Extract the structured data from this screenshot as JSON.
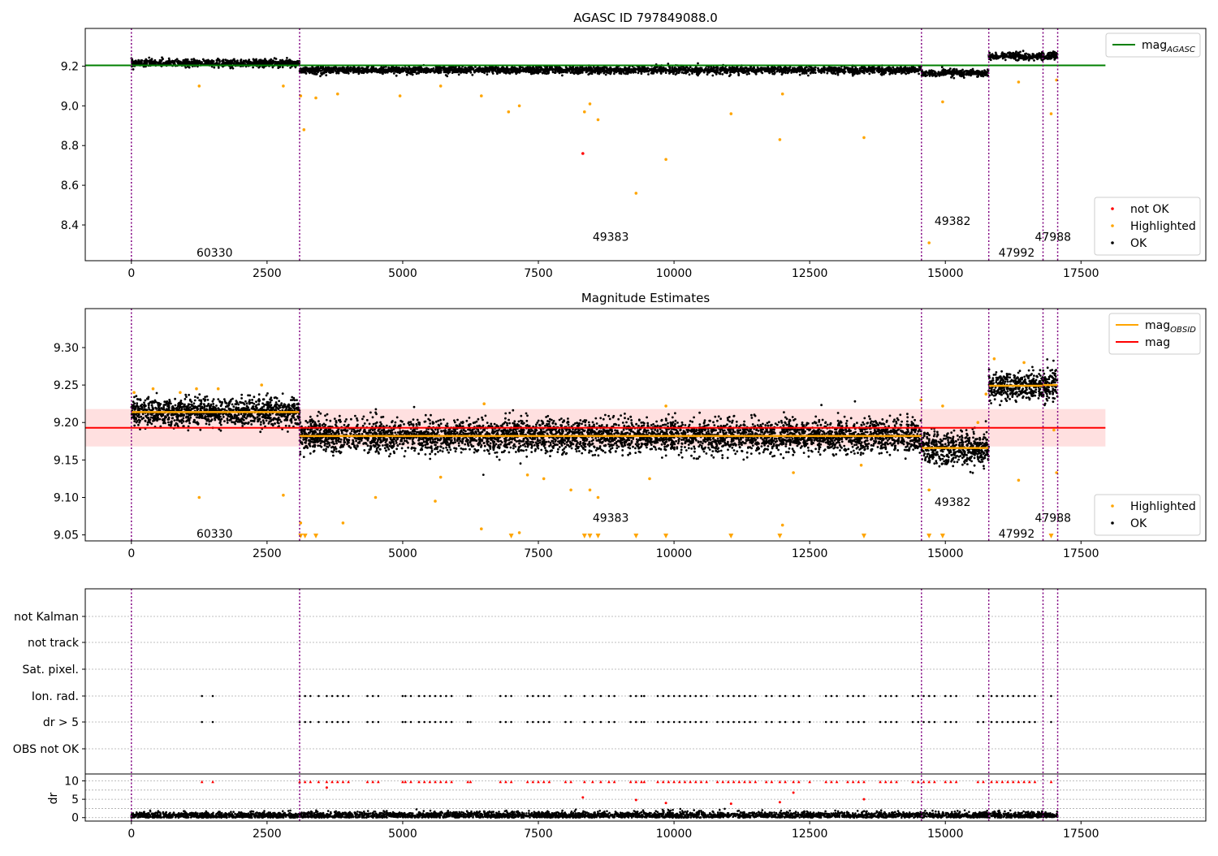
{
  "chart_data": [
    {
      "type": "scatter",
      "title": "AGASC ID 797849088.0",
      "xlabel": "",
      "ylabel": "",
      "xlim": [
        -850,
        19800
      ],
      "ylim": [
        8.22,
        9.39
      ],
      "xticks": [
        0,
        2500,
        5000,
        7500,
        10000,
        12500,
        15000,
        17500
      ],
      "yticks": [
        8.4,
        8.6,
        8.8,
        9.0,
        9.2
      ],
      "ytick_labels": [
        "8.4",
        "8.6",
        "8.8",
        "9.0",
        "9.2"
      ],
      "xtick_labels": [
        "0",
        "2500",
        "5000",
        "7500",
        "10000",
        "12500",
        "15000",
        "17500"
      ],
      "reference_line": {
        "name": "mag_AGASC",
        "y": 9.204,
        "x": [
          -850,
          17950
        ],
        "color": "#008000"
      },
      "segments": [
        {
          "obsid": "60330",
          "start": 0,
          "end": 3100,
          "ok_mag": 9.215,
          "spread": 0.02
        },
        {
          "obsid": "49383",
          "start": 3100,
          "end": 14560,
          "ok_mag": 9.18,
          "spread": 0.02
        },
        {
          "obsid": "49382",
          "start": 14560,
          "end": 15800,
          "ok_mag": 9.165,
          "spread": 0.02
        },
        {
          "obsid": "47992",
          "start": 15800,
          "end": 16800,
          "ok_mag": 9.25,
          "spread": 0.02
        },
        {
          "obsid": "47988",
          "start": 16800,
          "end": 17070,
          "ok_mag": 9.25,
          "spread": 0.02
        }
      ],
      "obsid_labels": [
        {
          "text": "60330",
          "x": 1200,
          "y": 8.26
        },
        {
          "text": "49383",
          "x": 8500,
          "y": 8.34
        },
        {
          "text": "49382",
          "x": 14800,
          "y": 8.42
        },
        {
          "text": "47992",
          "x": 15980,
          "y": 8.26
        },
        {
          "text": "47988",
          "x": 16650,
          "y": 8.34
        }
      ],
      "series": [
        {
          "name": "not OK",
          "color": "#ff0000",
          "points": [
            [
              8320,
              8.76
            ]
          ]
        },
        {
          "name": "Highlighted",
          "color": "#ffa500",
          "points": [
            [
              1250,
              9.1
            ],
            [
              2800,
              9.1
            ],
            [
              3120,
              9.05
            ],
            [
              3180,
              8.88
            ],
            [
              3400,
              9.04
            ],
            [
              3800,
              9.06
            ],
            [
              4950,
              9.05
            ],
            [
              5700,
              9.1
            ],
            [
              6450,
              9.05
            ],
            [
              6950,
              8.97
            ],
            [
              7150,
              9.0
            ],
            [
              8350,
              8.97
            ],
            [
              8450,
              9.01
            ],
            [
              8600,
              8.93
            ],
            [
              9300,
              8.56
            ],
            [
              9850,
              8.73
            ],
            [
              11050,
              8.96
            ],
            [
              11950,
              8.83
            ],
            [
              12000,
              9.06
            ],
            [
              13500,
              8.84
            ],
            [
              14700,
              8.31
            ],
            [
              14950,
              9.02
            ],
            [
              16350,
              9.12
            ],
            [
              16950,
              8.96
            ],
            [
              17050,
              9.13
            ]
          ]
        },
        {
          "name": "OK",
          "color": "#000000",
          "points": []
        }
      ],
      "legends": [
        {
          "position": "upper-right",
          "entries": [
            {
              "label": "mag",
              "sub": "AGASC",
              "kind": "line",
              "color": "#008000"
            }
          ]
        },
        {
          "position": "lower-right",
          "entries": [
            {
              "label": "not OK",
              "kind": "dot",
              "color": "#ff0000"
            },
            {
              "label": "Highlighted",
              "kind": "dot",
              "color": "#ffa500"
            },
            {
              "label": "OK",
              "kind": "dot",
              "color": "#000000"
            }
          ]
        }
      ],
      "obs_boundaries": [
        0,
        3100,
        14560,
        15800,
        16800,
        17070
      ]
    },
    {
      "type": "scatter",
      "title": "Magnitude Estimates",
      "xlabel": "",
      "ylabel": "",
      "xlim": [
        -850,
        19800
      ],
      "ylim": [
        9.042,
        9.352
      ],
      "xticks": [
        0,
        2500,
        5000,
        7500,
        10000,
        12500,
        15000,
        17500
      ],
      "xtick_labels": [
        "0",
        "2500",
        "5000",
        "7500",
        "10000",
        "12500",
        "15000",
        "17500"
      ],
      "yticks": [
        9.05,
        9.1,
        9.15,
        9.2,
        9.25,
        9.3
      ],
      "ytick_labels": [
        "9.05",
        "9.10",
        "9.15",
        "9.20",
        "9.25",
        "9.30"
      ],
      "mag_line": {
        "name": "mag",
        "y": 9.193,
        "band": [
          9.168,
          9.218
        ],
        "x": [
          -850,
          17950
        ],
        "color": "#ff0000"
      },
      "obsid_mags": [
        {
          "start": 0,
          "end": 3100,
          "mag": 9.214
        },
        {
          "start": 3100,
          "end": 14560,
          "mag": 9.182
        },
        {
          "start": 14560,
          "end": 15800,
          "mag": 9.166
        },
        {
          "start": 15800,
          "end": 16800,
          "mag": 9.249
        },
        {
          "start": 16800,
          "end": 17070,
          "mag": 9.25
        }
      ],
      "segments": [
        {
          "start": 0,
          "end": 3100,
          "ok_mag": 9.214,
          "spread": 0.01
        },
        {
          "start": 3100,
          "end": 14560,
          "ok_mag": 9.182,
          "spread": 0.012
        },
        {
          "start": 14560,
          "end": 15800,
          "ok_mag": 9.166,
          "spread": 0.012
        },
        {
          "start": 15800,
          "end": 16800,
          "ok_mag": 9.249,
          "spread": 0.01
        },
        {
          "start": 16800,
          "end": 17070,
          "ok_mag": 9.25,
          "spread": 0.014
        }
      ],
      "obsid_labels": [
        {
          "text": "60330",
          "x": 1200,
          "y": 9.052
        },
        {
          "text": "49383",
          "x": 8500,
          "y": 9.073
        },
        {
          "text": "49382",
          "x": 14800,
          "y": 9.094
        },
        {
          "text": "47992",
          "x": 15980,
          "y": 9.052
        },
        {
          "text": "47988",
          "x": 16650,
          "y": 9.073
        }
      ],
      "series": [
        {
          "name": "Highlighted",
          "color": "#ffa500",
          "points": [
            [
              50,
              9.24
            ],
            [
              400,
              9.245
            ],
            [
              900,
              9.24
            ],
            [
              1200,
              9.245
            ],
            [
              1250,
              9.1
            ],
            [
              1600,
              9.245
            ],
            [
              2400,
              9.25
            ],
            [
              2800,
              9.103
            ],
            [
              3120,
              9.066
            ],
            [
              3900,
              9.066
            ],
            [
              4500,
              9.1
            ],
            [
              5600,
              9.095
            ],
            [
              5700,
              9.127
            ],
            [
              6450,
              9.058
            ],
            [
              6500,
              9.225
            ],
            [
              7150,
              9.053
            ],
            [
              7300,
              9.13
            ],
            [
              7600,
              9.125
            ],
            [
              8100,
              9.11
            ],
            [
              8450,
              9.11
            ],
            [
              8600,
              9.1
            ],
            [
              9550,
              9.125
            ],
            [
              9850,
              9.222
            ],
            [
              12000,
              9.063
            ],
            [
              12200,
              9.133
            ],
            [
              13450,
              9.143
            ],
            [
              14550,
              9.23
            ],
            [
              14700,
              9.11
            ],
            [
              14950,
              9.222
            ],
            [
              15600,
              9.2
            ],
            [
              15750,
              9.238
            ],
            [
              15900,
              9.285
            ],
            [
              16350,
              9.123
            ],
            [
              16450,
              9.28
            ],
            [
              17000,
              9.19
            ],
            [
              17050,
              9.133
            ]
          ]
        },
        {
          "name": "OK",
          "color": "#000000",
          "points": []
        }
      ],
      "clipped_markers": [
        3120,
        3200,
        3400,
        7000,
        8350,
        8450,
        8600,
        9300,
        9850,
        11050,
        11950,
        13500,
        14700,
        14950,
        16950
      ],
      "legends": [
        {
          "position": "upper-right",
          "entries": [
            {
              "label": "mag",
              "sub": "OBSID",
              "kind": "line",
              "color": "#ffa500"
            },
            {
              "label": "mag",
              "kind": "line",
              "color": "#ff0000"
            }
          ]
        },
        {
          "position": "lower-right",
          "entries": [
            {
              "label": "Highlighted",
              "kind": "dot",
              "color": "#ffa500"
            },
            {
              "label": "OK",
              "kind": "dot",
              "color": "#000000"
            }
          ]
        }
      ],
      "obs_boundaries": [
        0,
        3100,
        14560,
        15800,
        16800,
        17070
      ]
    },
    {
      "type": "scatter",
      "title": "",
      "xlabel": "",
      "xlim": [
        -850,
        19800
      ],
      "xticks": [
        0,
        2500,
        5000,
        7500,
        10000,
        12500,
        15000,
        17500
      ],
      "xtick_labels": [
        "0",
        "2500",
        "5000",
        "7500",
        "10000",
        "12500",
        "15000",
        "17500"
      ],
      "flag_rows": [
        "not Kalman",
        "not track",
        "Sat. pixel.",
        "Ion. rad.",
        "dr > 5",
        "OBS not OK"
      ],
      "flag_rows_with_points": [
        "Ion. rad.",
        "dr > 5"
      ],
      "flag_times": [
        1300,
        1500,
        3100,
        3200,
        3300,
        3450,
        3600,
        3700,
        3800,
        3900,
        4000,
        4350,
        4450,
        4550,
        5000,
        5050,
        5150,
        5300,
        5400,
        5500,
        5600,
        5700,
        5800,
        5900,
        6200,
        6250,
        6800,
        6900,
        7000,
        7300,
        7400,
        7500,
        7600,
        7700,
        8000,
        8100,
        8350,
        8500,
        8650,
        8800,
        8900,
        9200,
        9300,
        9400,
        9450,
        9700,
        9800,
        9900,
        10000,
        10100,
        10200,
        10300,
        10400,
        10500,
        10600,
        10800,
        10900,
        11000,
        11100,
        11200,
        11300,
        11400,
        11500,
        11700,
        11800,
        11950,
        12050,
        12200,
        12300,
        12500,
        12800,
        12900,
        13000,
        13200,
        13300,
        13400,
        13500,
        13800,
        13900,
        14000,
        14100,
        14400,
        14500,
        14600,
        14700,
        14800,
        15000,
        15100,
        15200,
        15600,
        15700,
        15850,
        15950,
        16050,
        16150,
        16250,
        16350,
        16450,
        16550,
        16650,
        16950
      ],
      "dr_axis": {
        "ylabel": "dr",
        "ylim": [
          -0.5,
          11
        ],
        "yticks": [
          0,
          5,
          10
        ],
        "ytick_labels": [
          "0",
          "5",
          "10"
        ]
      },
      "dr_series": [
        {
          "name": "OK",
          "color": "#000000",
          "level": 0.6,
          "spread": 0.5
        },
        {
          "name": "clipped",
          "color": "#ff0000",
          "level": 9.8,
          "marker": "triangle"
        },
        {
          "name": "high",
          "color": "#ff0000",
          "points": [
            [
              3600,
              8.2
            ],
            [
              8320,
              5.5
            ],
            [
              9300,
              4.8
            ],
            [
              9850,
              4.0
            ],
            [
              11050,
              3.8
            ],
            [
              11950,
              4.2
            ],
            [
              12200,
              6.8
            ],
            [
              13500,
              5.0
            ]
          ]
        }
      ],
      "obs_boundaries": [
        0,
        3100,
        14560,
        15800,
        16800,
        17070
      ]
    }
  ]
}
